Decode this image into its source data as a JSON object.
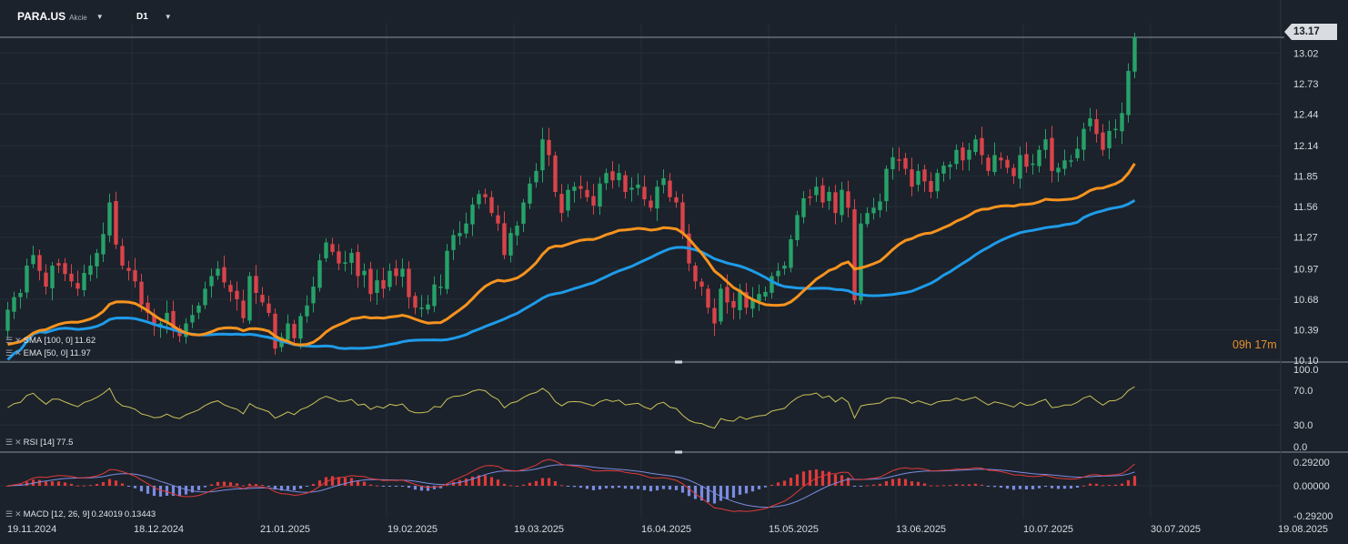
{
  "header": {
    "symbol": "PARA.US",
    "asset_type": "Akcie",
    "timeframe": "D1"
  },
  "indicators": {
    "sma": {
      "label": "SMA [100, 0]",
      "value": "11.62",
      "color": "#1e9be9"
    },
    "ema": {
      "label": "EMA [50, 0]",
      "value": "11.97",
      "color": "#f7931e"
    },
    "rsi": {
      "label": "RSI [14]",
      "value": "77.5",
      "color": "#c9c25a"
    },
    "macd": {
      "label": "MACD [12, 26, 9]",
      "value1": "0.24019",
      "value2": "0.13443",
      "macd_color": "#e03a3a",
      "signal_color": "#7b8be0"
    }
  },
  "countdown": "09h 17m",
  "current_price": "13.17",
  "colors": {
    "background": "#1b222b",
    "up": "#26a269",
    "down": "#d9434a",
    "grid": "#262f39"
  },
  "chart_data": [
    {
      "type": "candlestick",
      "title": "PARA.US D1",
      "x_tick_labels": [
        "19.11.2024",
        "18.12.2024",
        "21.01.2025",
        "19.02.2025",
        "19.03.2025",
        "16.04.2025",
        "15.05.2025",
        "13.06.2025",
        "10.07.2025",
        "30.07.2025",
        "19.08.2025"
      ],
      "y_tick_labels": [
        "13.02",
        "12.73",
        "12.44",
        "12.14",
        "11.85",
        "11.56",
        "11.27",
        "10.97",
        "10.68",
        "10.39",
        "10.10"
      ],
      "ylim": [
        10.1,
        13.3
      ],
      "last_price": 13.17,
      "close": [
        10.58,
        10.7,
        10.74,
        11.0,
        11.1,
        10.95,
        10.8,
        11.0,
        11.0,
        10.92,
        10.85,
        10.78,
        10.93,
        11.0,
        11.12,
        11.3,
        11.6,
        11.2,
        11.0,
        10.95,
        10.85,
        10.63,
        10.55,
        10.43,
        10.45,
        10.55,
        10.4,
        10.33,
        10.45,
        10.53,
        10.62,
        10.78,
        10.9,
        10.97,
        10.84,
        10.75,
        10.68,
        10.5,
        10.9,
        10.74,
        10.65,
        10.55,
        10.21,
        10.32,
        10.45,
        10.31,
        10.52,
        10.62,
        10.8,
        11.05,
        11.22,
        11.13,
        11.02,
        11.03,
        11.12,
        10.9,
        10.95,
        10.73,
        10.86,
        10.78,
        10.95,
        10.9,
        10.97,
        10.7,
        10.6,
        10.6,
        10.63,
        10.82,
        10.8,
        11.14,
        11.29,
        11.31,
        11.4,
        11.58,
        11.68,
        11.65,
        11.5,
        11.4,
        11.1,
        11.31,
        11.38,
        11.6,
        11.78,
        11.9,
        12.2,
        12.05,
        11.7,
        11.5,
        11.72,
        11.75,
        11.73,
        11.65,
        11.57,
        11.78,
        11.88,
        11.81,
        11.88,
        11.7,
        11.74,
        11.77,
        11.63,
        11.55,
        11.75,
        11.83,
        11.65,
        11.6,
        11.3,
        11.02,
        10.85,
        10.8,
        10.6,
        10.45,
        10.78,
        10.65,
        10.6,
        10.77,
        10.6,
        10.68,
        10.73,
        10.75,
        10.9,
        10.95,
        11.0,
        11.25,
        11.48,
        11.64,
        11.65,
        11.75,
        11.6,
        11.7,
        11.5,
        11.72,
        11.55,
        10.67,
        11.4,
        11.5,
        11.55,
        11.61,
        11.92,
        12.03,
        12.0,
        11.92,
        11.75,
        11.9,
        11.8,
        11.7,
        11.88,
        11.95,
        11.96,
        12.1,
        12.0,
        12.1,
        12.2,
        12.05,
        11.9,
        12.05,
        12.0,
        11.93,
        11.85,
        12.05,
        11.94,
        11.97,
        12.1,
        12.2,
        11.9,
        11.93,
        12.0,
        12.0,
        12.11,
        12.3,
        12.4,
        12.25,
        12.1,
        12.28,
        12.3,
        12.45,
        12.85,
        13.17
      ],
      "series": [
        {
          "name": "SMA [100, 0]",
          "last": 11.62
        },
        {
          "name": "EMA [50, 0]",
          "last": 11.97
        }
      ]
    },
    {
      "type": "line",
      "title": "RSI [14]",
      "y_tick_labels": [
        "100.0",
        "70.0",
        "30.0",
        "0.0"
      ],
      "ylim": [
        0,
        100
      ],
      "last": 77.5
    },
    {
      "type": "bar",
      "title": "MACD [12, 26, 9]",
      "y_tick_labels": [
        "0.29200",
        "0.00000",
        "-0.29200"
      ],
      "ylim": [
        -0.36,
        0.36
      ],
      "last_macd": 0.24019,
      "last_signal": 0.13443
    }
  ]
}
